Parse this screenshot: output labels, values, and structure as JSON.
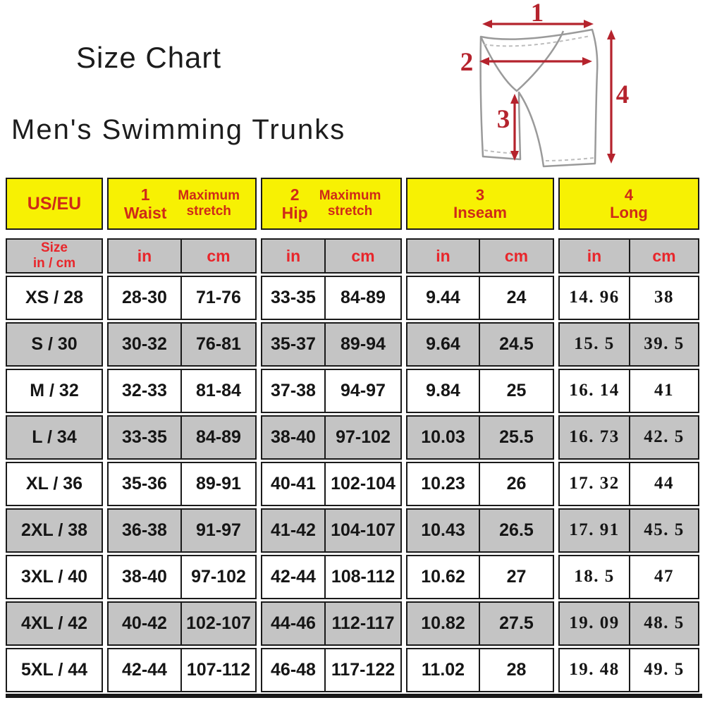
{
  "header": {
    "title": "Size Chart",
    "subtitle": "Men's Swimming Trunks"
  },
  "diagram": {
    "arrow_labels": {
      "waist": "1",
      "hip": "2",
      "inseam": "3",
      "long": "4"
    },
    "arrow_color": "#b5232d",
    "outline_color": "#9a9a9a"
  },
  "table": {
    "colors": {
      "group_header_bg": "#f7f103",
      "group_header_text": "#cf2a18",
      "subheader_bg": "#c4c4c4",
      "subheader_text": "#e8262b",
      "shaded_row_bg": "#c4c4c4",
      "border": "#1a1a1a",
      "value_text": "#151515"
    },
    "corner_header": {
      "label": "US/EU"
    },
    "groups": [
      {
        "num": "1",
        "name": "Waist",
        "qualifier_top": "Maximum",
        "qualifier_bottom": "stretch"
      },
      {
        "num": "2",
        "name": "Hip",
        "qualifier_top": "Maximum",
        "qualifier_bottom": "stretch"
      },
      {
        "num": "3",
        "name": "Inseam"
      },
      {
        "num": "4",
        "name": "Long"
      }
    ],
    "subheader": {
      "size_line1": "Size",
      "size_line2": "in / cm",
      "units": [
        "in",
        "cm",
        "in",
        "cm",
        "in",
        "cm",
        "in",
        "cm"
      ]
    },
    "rows": [
      {
        "size": "XS / 28",
        "waist_in": "28-30",
        "waist_cm": "71-76",
        "hip_in": "33-35",
        "hip_cm": "84-89",
        "inseam_in": "9.44",
        "inseam_cm": "24",
        "long_in": "14. 96",
        "long_cm": "38"
      },
      {
        "size": "S / 30",
        "waist_in": "30-32",
        "waist_cm": "76-81",
        "hip_in": "35-37",
        "hip_cm": "89-94",
        "inseam_in": "9.64",
        "inseam_cm": "24.5",
        "long_in": "15. 5",
        "long_cm": "39. 5"
      },
      {
        "size": "M / 32",
        "waist_in": "32-33",
        "waist_cm": "81-84",
        "hip_in": "37-38",
        "hip_cm": "94-97",
        "inseam_in": "9.84",
        "inseam_cm": "25",
        "long_in": "16. 14",
        "long_cm": "41"
      },
      {
        "size": "L / 34",
        "waist_in": "33-35",
        "waist_cm": "84-89",
        "hip_in": "38-40",
        "hip_cm": "97-102",
        "inseam_in": "10.03",
        "inseam_cm": "25.5",
        "long_in": "16. 73",
        "long_cm": "42. 5"
      },
      {
        "size": "XL / 36",
        "waist_in": "35-36",
        "waist_cm": "89-91",
        "hip_in": "40-41",
        "hip_cm": "102-104",
        "inseam_in": "10.23",
        "inseam_cm": "26",
        "long_in": "17. 32",
        "long_cm": "44"
      },
      {
        "size": "2XL / 38",
        "waist_in": "36-38",
        "waist_cm": "91-97",
        "hip_in": "41-42",
        "hip_cm": "104-107",
        "inseam_in": "10.43",
        "inseam_cm": "26.5",
        "long_in": "17. 91",
        "long_cm": "45. 5"
      },
      {
        "size": "3XL / 40",
        "waist_in": "38-40",
        "waist_cm": "97-102",
        "hip_in": "42-44",
        "hip_cm": "108-112",
        "inseam_in": "10.62",
        "inseam_cm": "27",
        "long_in": "18. 5",
        "long_cm": "47"
      },
      {
        "size": "4XL / 42",
        "waist_in": "40-42",
        "waist_cm": "102-107",
        "hip_in": "44-46",
        "hip_cm": "112-117",
        "inseam_in": "10.82",
        "inseam_cm": "27.5",
        "long_in": "19. 09",
        "long_cm": "48. 5"
      },
      {
        "size": "5XL / 44",
        "waist_in": "42-44",
        "waist_cm": "107-112",
        "hip_in": "46-48",
        "hip_cm": "117-122",
        "inseam_in": "11.02",
        "inseam_cm": "28",
        "long_in": "19. 48",
        "long_cm": "49. 5"
      }
    ]
  },
  "chart_data": {
    "type": "table",
    "title": "Size Chart",
    "subtitle": "Men's Swimming Trunks",
    "column_groups": [
      "US/EU",
      "1 Waist Maximum stretch",
      "2 Hip Maximum stretch",
      "3 Inseam",
      "4 Long"
    ],
    "columns": [
      "Size in / cm",
      "Waist in",
      "Waist cm",
      "Hip in",
      "Hip cm",
      "Inseam in",
      "Inseam cm",
      "Long in",
      "Long cm"
    ],
    "rows": [
      [
        "XS / 28",
        "28-30",
        "71-76",
        "33-35",
        "84-89",
        "9.44",
        "24",
        "14.96",
        "38"
      ],
      [
        "S / 30",
        "30-32",
        "76-81",
        "35-37",
        "89-94",
        "9.64",
        "24.5",
        "15.5",
        "39.5"
      ],
      [
        "M / 32",
        "32-33",
        "81-84",
        "37-38",
        "94-97",
        "9.84",
        "25",
        "16.14",
        "41"
      ],
      [
        "L / 34",
        "33-35",
        "84-89",
        "38-40",
        "97-102",
        "10.03",
        "25.5",
        "16.73",
        "42.5"
      ],
      [
        "XL / 36",
        "35-36",
        "89-91",
        "40-41",
        "102-104",
        "10.23",
        "26",
        "17.32",
        "44"
      ],
      [
        "2XL / 38",
        "36-38",
        "91-97",
        "41-42",
        "104-107",
        "10.43",
        "26.5",
        "17.91",
        "45.5"
      ],
      [
        "3XL / 40",
        "38-40",
        "97-102",
        "42-44",
        "108-112",
        "10.62",
        "27",
        "18.5",
        "47"
      ],
      [
        "4XL / 42",
        "40-42",
        "102-107",
        "44-46",
        "112-117",
        "10.82",
        "27.5",
        "19.09",
        "48.5"
      ],
      [
        "5XL / 44",
        "42-44",
        "107-112",
        "46-48",
        "117-122",
        "11.02",
        "28",
        "19.48",
        "49.5"
      ]
    ]
  }
}
